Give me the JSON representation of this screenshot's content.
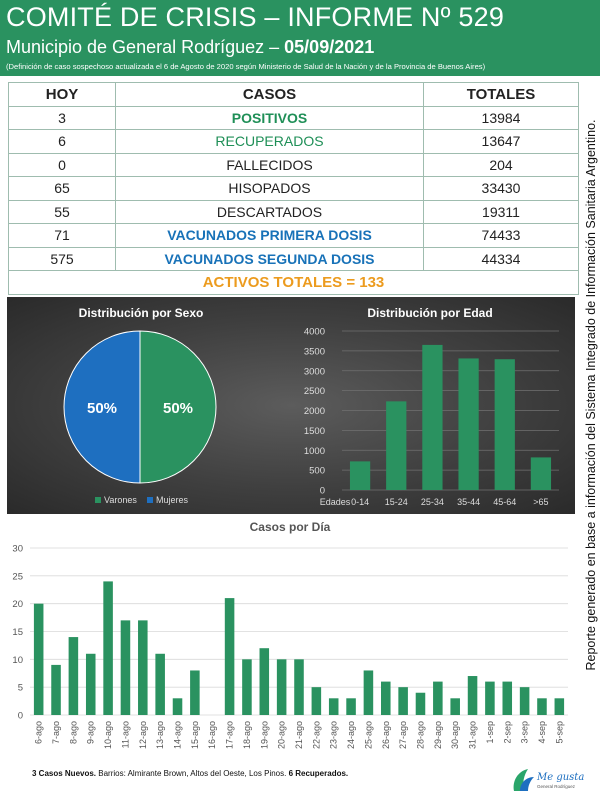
{
  "header": {
    "title": "COMITÉ DE CRISIS – INFORME Nº 529",
    "subtitle_prefix": "Municipio de General Rodríguez – ",
    "date": "05/09/2021",
    "note": "(Definición de caso sospechoso actualizada el 6 de Agosto de 2020 según Ministerio de Salud de la Nación y de la Provincia de Buenos Aires)"
  },
  "summary": {
    "headers": [
      "HOY",
      "CASOS",
      "TOTALES"
    ],
    "rows": [
      {
        "hoy": "3",
        "casos": "POSITIVOS",
        "totales": "13984"
      },
      {
        "hoy": "6",
        "casos": "RECUPERADOS",
        "totales": "13647"
      },
      {
        "hoy": "0",
        "casos": "FALLECIDOS",
        "totales": "204"
      },
      {
        "hoy": "65",
        "casos": "HISOPADOS",
        "totales": "33430"
      },
      {
        "hoy": "55",
        "casos": "DESCARTADOS",
        "totales": "19311"
      },
      {
        "hoy": "71",
        "casos": "VACUNADOS PRIMERA DOSIS",
        "totales": "74433"
      },
      {
        "hoy": "575",
        "casos": "VACUNADOS SEGUNDA DOSIS",
        "totales": "44334"
      }
    ],
    "activos": "ACTIVOS TOTALES = 133"
  },
  "side_text": "Reporte generado en base a información del Sistema Integrado de Información Sanitaria Argentino.",
  "colors": {
    "header_bg": "#2a9260",
    "bar": "#2a9260",
    "pie_varones": "#2a9260",
    "pie_mujeres": "#1e6fc0",
    "positivos": "#1f8f57",
    "vacunados": "#1872b8",
    "activos": "#ec9b1e"
  },
  "chart_data": [
    {
      "type": "pie",
      "title": "Distribución por Sexo",
      "labels": [
        "Varones",
        "Mujeres"
      ],
      "values": [
        50,
        50
      ],
      "data_labels": [
        "50%",
        "50%"
      ],
      "legend": "bottom"
    },
    {
      "type": "bar",
      "title": "Distribución por Edad",
      "xlabel": "Edades",
      "categories": [
        "0-14",
        "15-24",
        "25-34",
        "35-44",
        "45-64",
        ">65"
      ],
      "values": [
        720,
        2230,
        3650,
        3310,
        3290,
        820
      ],
      "ylim": [
        0,
        4000
      ],
      "yticks": [
        0,
        500,
        1000,
        1500,
        2000,
        2500,
        3000,
        3500,
        4000
      ],
      "grid": true
    },
    {
      "type": "bar",
      "title": "Casos por Día",
      "categories": [
        "6-ago",
        "7-ago",
        "8-ago",
        "9-ago",
        "10-ago",
        "11-ago",
        "12-ago",
        "13-ago",
        "14-ago",
        "15-ago",
        "16-ago",
        "17-ago",
        "18-ago",
        "19-ago",
        "20-ago",
        "21-ago",
        "22-ago",
        "23-ago",
        "24-ago",
        "25-ago",
        "26-ago",
        "27-ago",
        "28-ago",
        "29-ago",
        "30-ago",
        "31-ago",
        "1-sep",
        "2-sep",
        "3-sep",
        "4-sep",
        "5-sep"
      ],
      "values": [
        20,
        9,
        14,
        11,
        24,
        17,
        17,
        11,
        3,
        8,
        0,
        21,
        10,
        12,
        10,
        10,
        5,
        3,
        3,
        8,
        6,
        5,
        4,
        6,
        3,
        7,
        6,
        6,
        5,
        3,
        3
      ],
      "ylim": [
        0,
        30
      ],
      "yticks": [
        0,
        5,
        10,
        15,
        20,
        25,
        30
      ],
      "grid": true
    }
  ],
  "footer": {
    "casos_nuevos": "3 Casos Nuevos.",
    "barrios": " Barrios: Almirante Brown, Altos del Oeste, Los Pinos. ",
    "recuperados": "6 Recuperados."
  },
  "logo": {
    "text": "Me gusta",
    "sub": "General Rodríguez"
  }
}
